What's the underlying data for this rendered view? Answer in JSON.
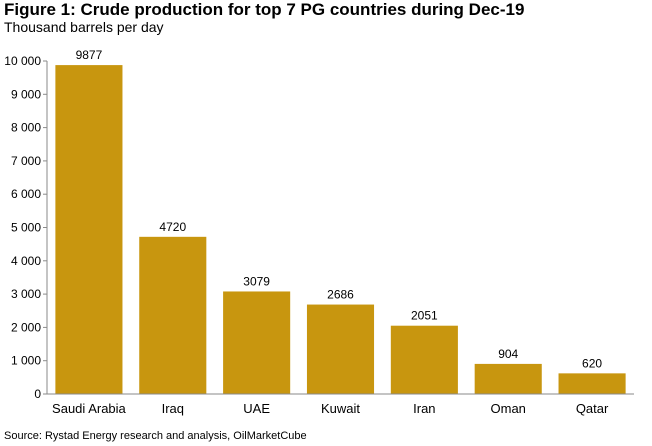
{
  "figure": {
    "title": "Figure 1: Crude production for top 7 PG countries during Dec-19",
    "subtitle": "Thousand barrels per day",
    "source": "Source: Rystad Energy research and analysis, OilMarketCube"
  },
  "colors": {
    "bar": "#C8960F",
    "axis": "#8a8a8a",
    "text": "#000000"
  },
  "chart_data": {
    "type": "bar",
    "title": "Figure 1: Crude production for top 7 PG countries during Dec-19",
    "ylabel": "Thousand barrels per day",
    "xlabel": "",
    "categories": [
      "Saudi Arabia",
      "Iraq",
      "UAE",
      "Kuwait",
      "Iran",
      "Oman",
      "Qatar"
    ],
    "values": [
      9877,
      4720,
      3079,
      2686,
      2051,
      904,
      620
    ],
    "data_labels": [
      "9877",
      "4720",
      "3079",
      "2686",
      "2051",
      "904",
      "620"
    ],
    "ylim": [
      0,
      10000
    ],
    "y_ticks": [
      0,
      1000,
      2000,
      3000,
      4000,
      5000,
      6000,
      7000,
      8000,
      9000,
      10000
    ],
    "y_tick_labels": [
      "0",
      "1 000",
      "2 000",
      "3 000",
      "4 000",
      "5 000",
      "6 000",
      "7 000",
      "8 000",
      "9 000",
      "10 000"
    ],
    "grid": false,
    "legend": "none"
  }
}
